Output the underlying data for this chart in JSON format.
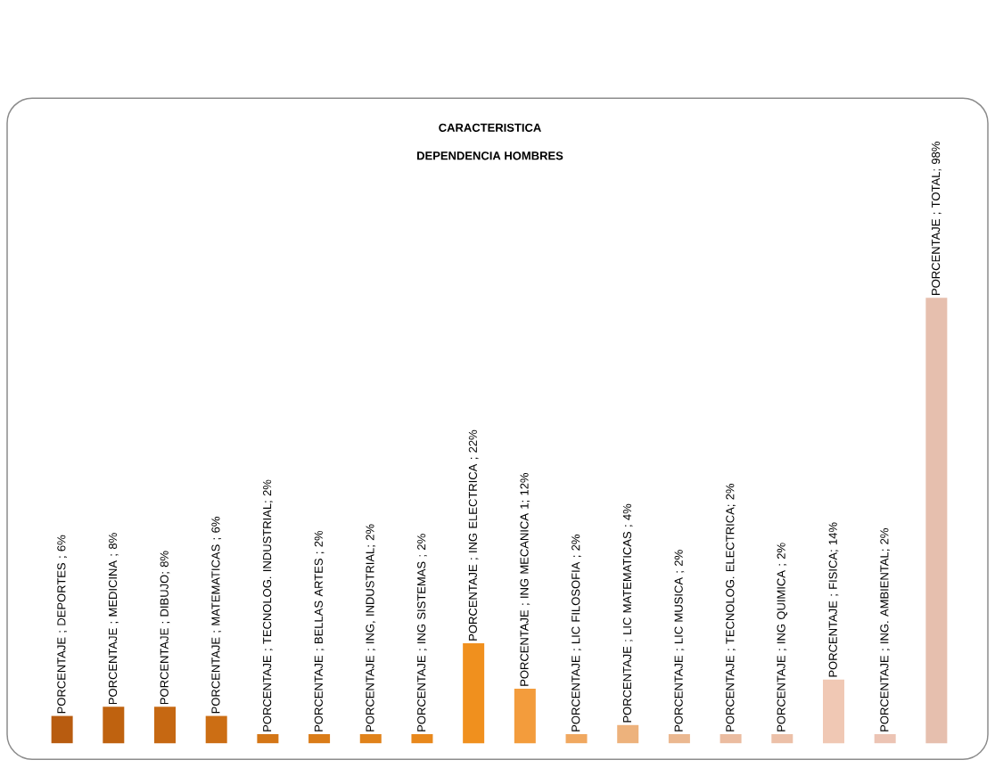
{
  "chart_data": {
    "type": "bar",
    "title": "CARACTERISTICA",
    "subtitle": "DEPENDENCIA HOMBRES",
    "categories": [
      null,
      null,
      null,
      null,
      null,
      null,
      null,
      null,
      null,
      null,
      null,
      null,
      null,
      null,
      null,
      null,
      null,
      null
    ],
    "values": [
      6,
      8,
      8,
      6,
      2,
      2,
      2,
      2,
      22,
      12,
      2,
      4,
      2,
      2,
      2,
      14,
      2,
      98
    ],
    "value_labels": [
      "PORCENTAJE ; DEPORTES ; 6%",
      "PORCENTAJE ; MEDICINA ; 8%",
      "PORCENTAJE ; DIBUJO; 8%",
      "PORCENTAJE ; MATEMATICAS ; 6%",
      "PORCENTAJE ; TECNOLOG. INDUSTRIAL; 2%",
      "PORCENTAJE ; BELLAS ARTES ; 2%",
      "PORCENTAJE ; ING, INDUSTRIAL; 2%",
      "PORCENTAJE ; ING SISTEMAS ; 2%",
      "PORCENTAJE ; ING ELECTRICA ; 22%",
      "PORCENTAJE ; ING MECANICA 1; 12%",
      "PORCENTAJE ; LIC FILOSOFIA ; 2%",
      "PORCENTAJE ; LIC MATEMATICAS ; 4%",
      "PORCENTAJE ; LIC MUSICA ; 2%",
      "PORCENTAJE ; TECNOLOG. ELECTRICA; 2%",
      "PORCENTAJE ; ING QUIMICA ; 2%",
      "PORCENTAJE ; FISICA; 14%",
      "PORCENTAJE ; ING. AMBIENTAL; 2%",
      "PORCENTAJE ; TOTAL; 98%"
    ],
    "colors": [
      "#b85c10",
      "#bf620f",
      "#c66812",
      "#cc6e14",
      "#d47616",
      "#da7c18",
      "#e0821a",
      "#e8881c",
      "#f0901e",
      "#f39c3c",
      "#f0a860",
      "#edb27c",
      "#ebb890",
      "#ebbca0",
      "#ecc0a8",
      "#f0c8b4",
      "#ecc4b4",
      "#e6bfae"
    ]
  }
}
